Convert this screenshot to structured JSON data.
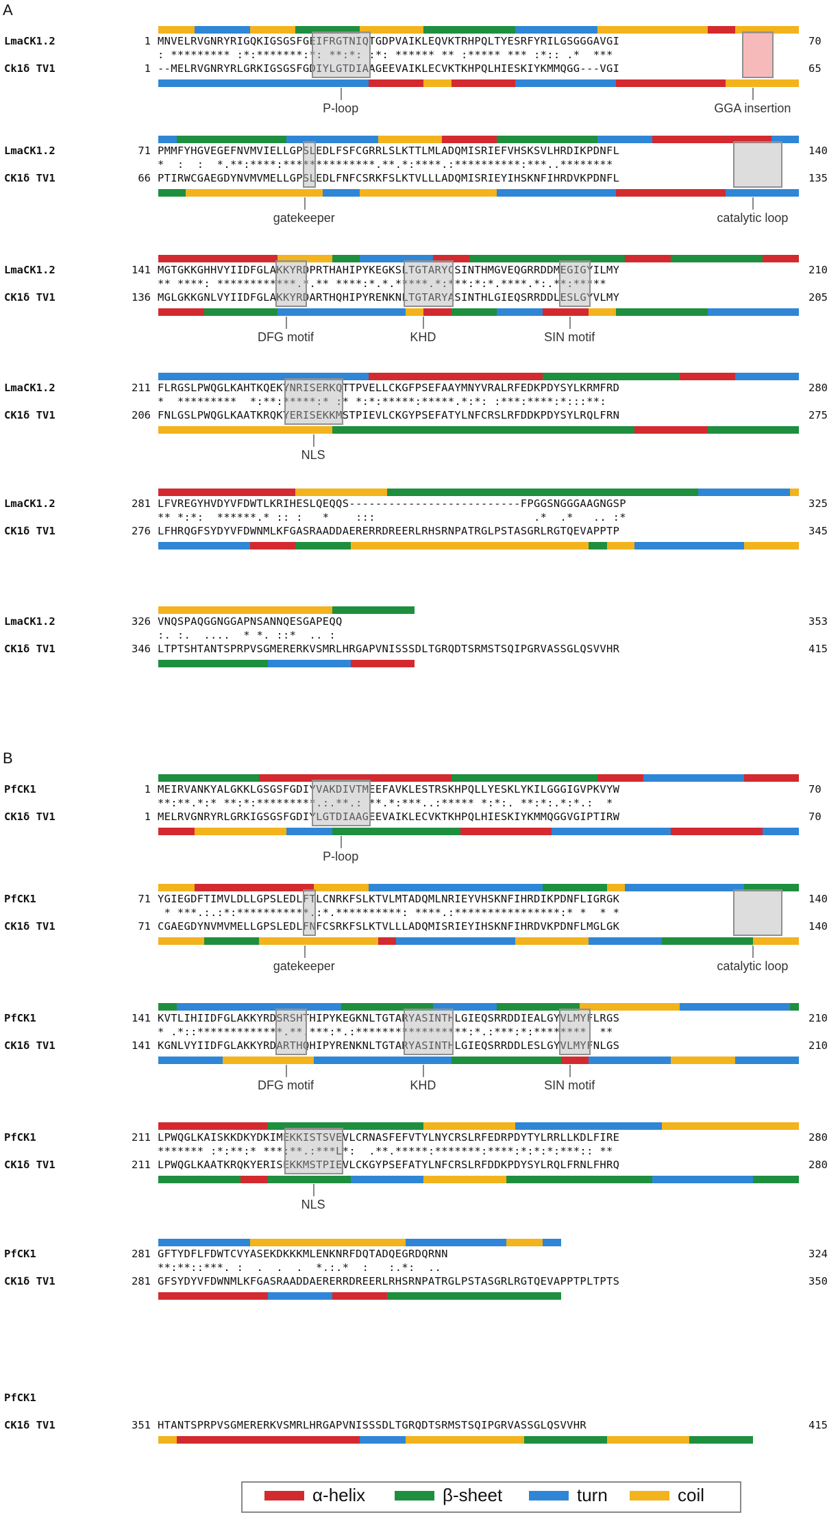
{
  "panels": [
    {
      "label": "A",
      "rows": [
        {
          "top_name": "LmaCK1.2",
          "top_start": "1",
          "top_seq": "MNVELRVGNRYRIGQKIGSGSFGEIFRGTNIQTGDPVAIKLEQVKTRHPQLTYESRFYRILGSGGGAVGI",
          "top_end": "70",
          "cons": ": ********* :*:*******:*: **:*: :*: ****** ** :***** *** :*:: .*  ***",
          "bot_name": "Ck1δ TV1",
          "bot_start": "1",
          "bot_seq": "--MELRVGNRYRLGRKIGSGSFGDIYLGTDIAAGEEVAIKLECVKTKHPQLHIESKIYKMMQGG---VGI",
          "bot_end": "65",
          "annotations": [
            "P-loop",
            "GGA insertion"
          ]
        },
        {
          "top_name": "LmaCK1.2",
          "top_start": "71",
          "top_seq": "PMMFYHGVEGEFNVMVIELLGPSLEDLFSFCGRRLSLKTTLMLADQMISRIEFVHSKSVLHRDIKPDNFL",
          "top_end": "140",
          "cons": "*  :  :  *.**:****:**************.**.*:****.:**********:***..******** ",
          "bot_name": "CK1δ TV1",
          "bot_start": "66",
          "bot_seq": "PTIRWCGAEGDYNVMVMELLGPSLEDLFNFCSRKFSLKTVLLLADQMISRIEYIHSKNFIHRDVKPDNFL",
          "bot_end": "135",
          "annotations": [
            "gatekeeper",
            "catalytic loop"
          ]
        },
        {
          "top_name": "LmaCK1.2",
          "top_start": "141",
          "top_seq": "MGTGKKGHHVYIIDFGLAKKYRDPRTHAHIPYKEGKSLTGTARYCSINTHMGVEQGRRDDMEGIGYILMY",
          "top_end": "210",
          "cons": "** ****: ************.*.** ****:*.*.*****.*:***:*:*.****.*:.**:***** ",
          "bot_name": "CK1δ TV1",
          "bot_start": "136",
          "bot_seq": "MGLGKKGNLVYIIDFGLAKKYRDARTHQHIPYRENKNLTGTARYASINTHLGIEQSRRDDLESLGYVLMY",
          "bot_end": "205",
          "annotations": [
            "DFG motif",
            "KHD",
            "SIN motif"
          ]
        },
        {
          "top_name": "LmaCK1.2",
          "top_start": "211",
          "top_seq": "FLRGSLPWQGLKAHTKQEKYNRISERKQTTPVELLCKGFPSEFAAYMNYVRALRFEDKPDYSYLKRMFRD",
          "top_end": "280",
          "cons": "*  *********  *:**:*****:* :* *:*:*****:*****.*:*: :***:****:*:::**: ",
          "bot_name": "CK1δ TV1",
          "bot_start": "206",
          "bot_seq": "FNLGSLPWQGLKAATKRQKYERISEKKMSTPIEVLCKGYPSEFATYLNFCRSLRFDDKPDYSYLRQLFRN",
          "bot_end": "275",
          "annotations": [
            "NLS"
          ]
        },
        {
          "top_name": "LmaCK1.2",
          "top_start": "281",
          "top_seq": "LFVREGYHVDYVFDWTLKRIHESLQEQQS--------------------------FPGGSNGGGAAGNGSP",
          "top_end": "325",
          "cons": "** *:*:  ******.* :: :   *    :::                        .*  .*   .. :*",
          "bot_name": "CK1δ TV1",
          "bot_start": "276",
          "bot_seq": "LFHRQGFSYDYVFDWNMLKFGASRAADDAERERRDREERLRHSRNPATRGLPSTASGRLRGTQEVAPPTP",
          "bot_end": "345",
          "annotations": []
        },
        {
          "top_name": "LmaCK1.2",
          "top_start": "326",
          "top_seq": "VNQSPAQGGNGGAPNSANNQESGAPEQQ",
          "top_end": "353",
          "cons": ":. :.  ....  * *. ::*  .. :",
          "bot_name": "CK1δ TV1",
          "bot_start": "346",
          "bot_seq": "LTPTSHTANTSPRPVSGMERERKVSMRLHRGAPVNISSSDLTGRQDTSRMSTSQIPGRVASSGLQSVVHR",
          "bot_end": "415",
          "annotations": []
        }
      ]
    },
    {
      "label": "B",
      "rows": [
        {
          "top_name": "PfCK1",
          "top_start": "1",
          "top_seq": "MEIRVANKYALGKKLGSGSFGDIYVAKDIVTMEEFAVKLESTRSKHPQLLYESKLYKILGGGIGVPKVYW",
          "top_end": "70",
          "cons": "**:**.*:* **:*:*********.:.**.: **.*:***..:***** *:*:. **:*:.*:*.:  *",
          "bot_name": "CK1δ TV1",
          "bot_start": "1",
          "bot_seq": "MELRVGNRYRLGRKIGSGSFGDIYLGTDIAAGEEVAIKLECVKTKHPQLHIESKIYKMMQGGVGIPTIRW",
          "bot_end": "70",
          "annotations": [
            "P-loop"
          ]
        },
        {
          "top_name": "PfCK1",
          "top_start": "71",
          "top_seq": "YGIEGDFTIMVLDLLGPSLEDLFTLCNRKFSLKTVLMTADQMLNRIEYVHSKNFIHRDIKPDNFLIGRGK",
          "top_end": "140",
          "cons": " * ***.:.:*:***********.:*.**********: ****.:****************:* *  * *",
          "bot_name": "CK1δ TV1",
          "bot_start": "71",
          "bot_seq": "CGAEGDYNVMVMELLGPSLEDLFNFCSRKFSLKTVLLLADQMISRIEYIHSKNFIHRDVKPDNFLMGLGK",
          "bot_end": "140",
          "annotations": [
            "gatekeeper",
            "catalytic loop"
          ]
        },
        {
          "top_name": "PfCK1",
          "top_start": "141",
          "top_seq": "KVTLIHIIDFGLAKKYRDSRSHTHIPYKEGKNLTGTARYASINTHLGIEQSRRDDIEALGYVLMYFLRGS",
          "top_end": "210",
          "cons": "* .*::*************.**.***:*.:*****************:*.:***:*:********  **",
          "bot_name": "CK1δ TV1",
          "bot_start": "141",
          "bot_seq": "KGNLVYIIDFGLAKKYRDARTHQHIPYRENKNLTGTARYASINTHLGIEQSRRDDLESLGYVLMYFNLGS",
          "bot_end": "210",
          "annotations": [
            "DFG motif",
            "KHD",
            "SIN motif"
          ]
        },
        {
          "top_name": "PfCK1",
          "top_start": "211",
          "top_seq": "LPWQGLKAISKKDKYDKIMEKKISTSVEVLCRNASFEFVTYLNYCRSLRFEDRPDYTYLRRLLKDLFIRE",
          "top_end": "280",
          "cons": "******* :*:**:* ***:**.:***L*:  .**.*****:*******:****:*:*:*:***:: ** ",
          "bot_name": "CK1δ TV1",
          "bot_start": "211",
          "bot_seq": "LPWQGLKAATKRQKYERISEKKMSTPIEVLCKGYPSEFATYLNFCRSLRFDDKPDYSYLRQLFRNLFHRQ",
          "bot_end": "280",
          "annotations": [
            "NLS"
          ]
        },
        {
          "top_name": "PfCK1",
          "top_start": "281",
          "top_seq": "GFTYDFLFDWTCVYASEKDKKKMLENKNRFDQTADQEGRDQRNN",
          "top_end": "324",
          "cons": "**:**::***. :  .  .  .  *.:.*  :   :.*:  ..",
          "bot_name": "CK1δ TV1",
          "bot_start": "281",
          "bot_seq": "GFSYDYVFDWNMLKFGASRAADDAERERRDREERLRHSRNPATRGLPSTASGRLRGTQEVAPPTPLTPTS",
          "bot_end": "350",
          "annotations": []
        },
        {
          "top_name": "PfCK1",
          "top_start": "",
          "top_seq": "",
          "top_end": "",
          "cons": "",
          "bot_name": "CK1δ TV1",
          "bot_start": "351",
          "bot_seq": "HTANTSPRPVSGMERERKVSMRLHRGAPVNISSSDLTGRQDTSRMSTSQIPGRVASSGLQSVVHR",
          "bot_end": "415",
          "annotations": []
        }
      ]
    }
  ],
  "legend": {
    "items": [
      {
        "label": "α-helix",
        "color": "#d32a2f"
      },
      {
        "label": "β-sheet",
        "color": "#1e8f3e"
      },
      {
        "label": "turn",
        "color": "#2f86d6"
      },
      {
        "label": "coil",
        "color": "#f2b31c"
      }
    ]
  }
}
